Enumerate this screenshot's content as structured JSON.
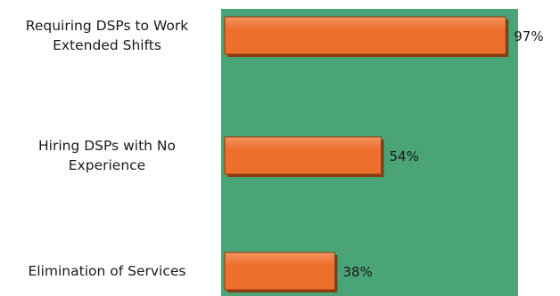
{
  "chart_data": {
    "type": "bar",
    "orientation": "horizontal",
    "categories": [
      "Requiring DSPs to Work Extended Shifts",
      "Hiring DSPs with No Experience",
      "Elimination of Services"
    ],
    "category_label_lines": [
      [
        "Requiring DSPs to Work",
        "Extended Shifts"
      ],
      [
        "Hiring DSPs with No",
        "Experience"
      ],
      [
        "Elimination of Services"
      ]
    ],
    "values": [
      97,
      54,
      38
    ],
    "value_labels": [
      "97%",
      "54%",
      "38%"
    ],
    "xlim": [
      0,
      100
    ],
    "grid": false,
    "legend": "none",
    "colors": {
      "plot_background": "#4aa477",
      "bar_fill": "#ee6e2c",
      "bar_highlight": "#f4945e",
      "bar_shadow": "#8a3c12",
      "text": "#1a1a1a"
    }
  }
}
